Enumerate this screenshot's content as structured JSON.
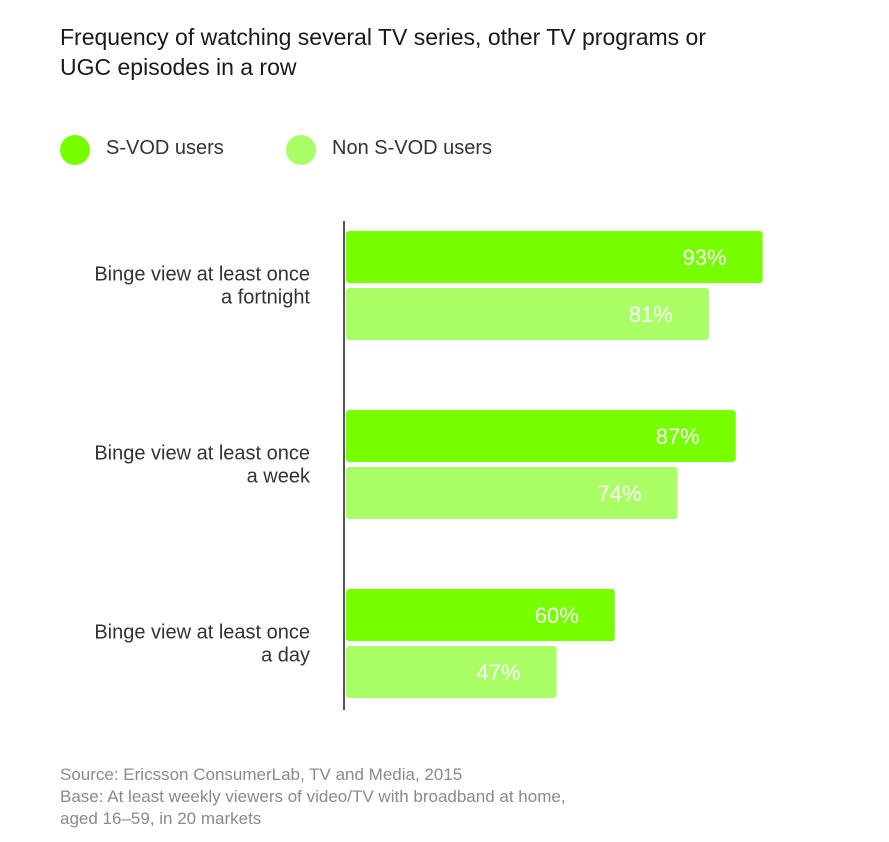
{
  "title": {
    "line1": "Frequency of watching several TV series, other TV programs or",
    "line2": "UGC episodes in a row"
  },
  "legend": [
    {
      "label": "S-VOD users",
      "color": "#77ff00"
    },
    {
      "label": "Non S-VOD users",
      "color": "#aaff66"
    }
  ],
  "chart_data": {
    "type": "bar",
    "orientation": "horizontal",
    "categories": [
      {
        "line1": "Binge view at least once",
        "line2": "a fortnight"
      },
      {
        "line1": "Binge view at least once",
        "line2": "a week"
      },
      {
        "line1": "Binge view at least once",
        "line2": "a day"
      }
    ],
    "series": [
      {
        "name": "S-VOD users",
        "color": "#77ff00",
        "values": [
          93,
          87,
          60
        ],
        "labels": [
          "93%",
          "87%",
          "60%"
        ]
      },
      {
        "name": "Non S-VOD users",
        "color": "#aaff66",
        "values": [
          81,
          74,
          47
        ],
        "labels": [
          "81%",
          "74%",
          "47%"
        ]
      }
    ],
    "xlim": [
      0,
      100
    ],
    "grid": false,
    "legend_position": "top-left"
  },
  "footer": {
    "source": "Source: Ericsson ConsumerLab, TV and Media, 2015",
    "base_line1": "Base: At least weekly viewers of video/TV with broadband at home,",
    "base_line2": "aged 16–59, in 20 markets"
  }
}
